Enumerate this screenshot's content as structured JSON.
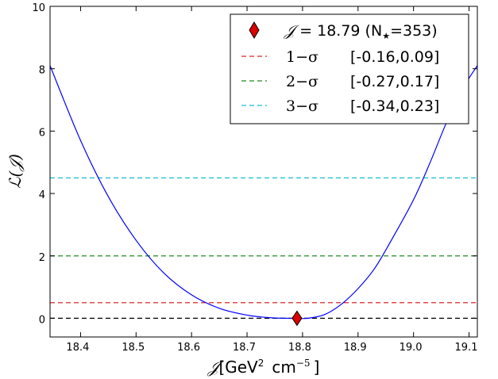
{
  "chart_data": {
    "type": "line",
    "xlabel": {
      "symbol": "𝒥",
      "unit_prefix": "[GeV",
      "exp1": "2",
      "unit_mid": "cm",
      "exp2": "−5",
      "unit_suffix": "]"
    },
    "ylabel": "ℒ(𝒥)",
    "xlim": [
      18.345,
      19.115
    ],
    "ylim": [
      -0.6,
      10
    ],
    "x_ticks": [
      "18.4",
      "18.5",
      "18.6",
      "18.7",
      "18.8",
      "18.9",
      "19.0",
      "19.1"
    ],
    "y_ticks": [
      "0",
      "2",
      "4",
      "6",
      "8",
      "10"
    ],
    "series": [
      {
        "color": "#0000ff",
        "x": [
          18.345,
          18.4,
          18.45,
          18.5,
          18.55,
          18.6,
          18.65,
          18.7,
          18.74,
          18.77,
          18.79,
          18.81,
          18.84,
          18.87,
          18.9,
          18.93,
          18.96,
          19.0,
          19.03,
          19.06,
          19.09,
          19.115
        ],
        "y": [
          8.1,
          5.7,
          3.9,
          2.5,
          1.45,
          0.75,
          0.32,
          0.1,
          0.02,
          0.0,
          0.0,
          0.0,
          0.12,
          0.45,
          0.95,
          1.6,
          2.5,
          3.8,
          5.0,
          6.3,
          7.4,
          8.1
        ]
      }
    ],
    "hlines": [
      {
        "y": 0.0,
        "color": "#000000"
      },
      {
        "y": 0.5,
        "color": "#d62728"
      },
      {
        "y": 2.0,
        "color": "#228b22"
      },
      {
        "y": 4.5,
        "color": "#17becf"
      }
    ],
    "best_fit_marker": {
      "x": 18.79,
      "y": 0.0,
      "color": "#dd0000"
    },
    "legend": {
      "placement": "top-right",
      "best_fit": {
        "symbol": "𝒥",
        "eq": " = 18.79 (N",
        "sub": "★",
        "tail": "=353)"
      },
      "entries": [
        {
          "label": "1−σ",
          "interval": "[-0.16,0.09]",
          "color": "#d62728"
        },
        {
          "label": "2−σ",
          "interval": "[-0.27,0.17]",
          "color": "#228b22"
        },
        {
          "label": "3−σ",
          "interval": "[-0.34,0.23]",
          "color": "#17becf"
        }
      ]
    }
  }
}
